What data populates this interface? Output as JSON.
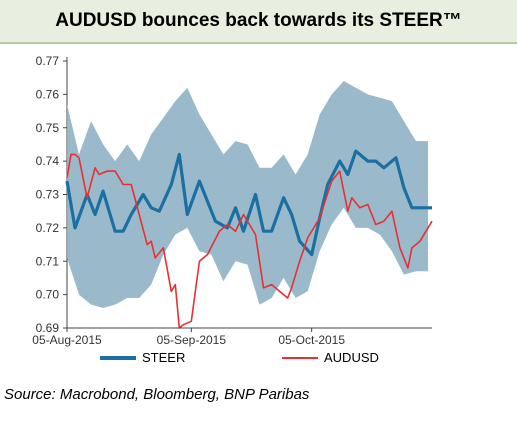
{
  "header": {
    "title": "AUDUSD bounces back towards its STEER™"
  },
  "source": "Source: Macrobond, Bloomberg, BNP Paribas",
  "colors": {
    "steer": "#1a6fa3",
    "audusd": "#e83030",
    "band": "#8fb3c6"
  },
  "chart_data": {
    "type": "line",
    "title": "AUDUSD bounces back towards its STEER™",
    "xlabel": "",
    "ylabel": "",
    "ylim": [
      0.69,
      0.77
    ],
    "yticks": [
      "0.77",
      "0.76",
      "0.75",
      "0.74",
      "0.73",
      "0.72",
      "0.71",
      "0.70",
      "0.69"
    ],
    "ytick_values": [
      0.77,
      0.76,
      0.75,
      0.74,
      0.73,
      0.72,
      0.71,
      0.7,
      0.69
    ],
    "xlim": [
      "2015-08-05",
      "2015-11-04"
    ],
    "xticks": [
      {
        "label": "05-Aug-2015",
        "date": "2015-08-05"
      },
      {
        "label": "05-Sep-2015",
        "date": "2015-09-05"
      },
      {
        "label": "05-Oct-2015",
        "date": "2015-10-05"
      }
    ],
    "legend": {
      "placement": "bottom"
    },
    "band": {
      "x": [
        "2015-08-05",
        "2015-08-08",
        "2015-08-11",
        "2015-08-14",
        "2015-08-17",
        "2015-08-20",
        "2015-08-23",
        "2015-08-26",
        "2015-08-29",
        "2015-09-01",
        "2015-09-04",
        "2015-09-07",
        "2015-09-10",
        "2015-09-13",
        "2015-09-16",
        "2015-09-19",
        "2015-09-22",
        "2015-09-25",
        "2015-09-28",
        "2015-10-01",
        "2015-10-04",
        "2015-10-07",
        "2015-10-10",
        "2015-10-13",
        "2015-10-16",
        "2015-10-19",
        "2015-10-22",
        "2015-10-25",
        "2015-10-28",
        "2015-10-31",
        "2015-11-03"
      ],
      "upper": [
        0.757,
        0.742,
        0.752,
        0.745,
        0.74,
        0.745,
        0.74,
        0.748,
        0.753,
        0.758,
        0.762,
        0.754,
        0.748,
        0.742,
        0.746,
        0.745,
        0.738,
        0.738,
        0.742,
        0.736,
        0.742,
        0.754,
        0.76,
        0.764,
        0.762,
        0.76,
        0.759,
        0.758,
        0.752,
        0.746,
        0.746
      ],
      "lower": [
        0.711,
        0.7,
        0.697,
        0.696,
        0.697,
        0.699,
        0.699,
        0.703,
        0.712,
        0.718,
        0.72,
        0.713,
        0.712,
        0.704,
        0.71,
        0.709,
        0.697,
        0.699,
        0.705,
        0.699,
        0.701,
        0.713,
        0.721,
        0.726,
        0.72,
        0.72,
        0.718,
        0.713,
        0.706,
        0.707,
        0.707
      ]
    },
    "series": [
      {
        "name": "STEER",
        "x": [
          "2015-08-05",
          "2015-08-07",
          "2015-08-10",
          "2015-08-12",
          "2015-08-14",
          "2015-08-17",
          "2015-08-19",
          "2015-08-21",
          "2015-08-24",
          "2015-08-26",
          "2015-08-28",
          "2015-08-31",
          "2015-09-02",
          "2015-09-04",
          "2015-09-07",
          "2015-09-09",
          "2015-09-11",
          "2015-09-14",
          "2015-09-16",
          "2015-09-18",
          "2015-09-21",
          "2015-09-23",
          "2015-09-25",
          "2015-09-28",
          "2015-09-30",
          "2015-10-02",
          "2015-10-05",
          "2015-10-07",
          "2015-10-09",
          "2015-10-12",
          "2015-10-14",
          "2015-10-16",
          "2015-10-19",
          "2015-10-21",
          "2015-10-23",
          "2015-10-26",
          "2015-10-28",
          "2015-10-30",
          "2015-11-02",
          "2015-11-04"
        ],
        "values": [
          0.734,
          0.72,
          0.73,
          0.724,
          0.731,
          0.719,
          0.719,
          0.724,
          0.73,
          0.726,
          0.725,
          0.733,
          0.742,
          0.724,
          0.734,
          0.728,
          0.722,
          0.72,
          0.726,
          0.719,
          0.73,
          0.719,
          0.719,
          0.729,
          0.724,
          0.716,
          0.712,
          0.723,
          0.733,
          0.74,
          0.736,
          0.743,
          0.74,
          0.74,
          0.738,
          0.741,
          0.732,
          0.726,
          0.726,
          0.726
        ]
      },
      {
        "name": "AUDUSD",
        "x": [
          "2015-08-05",
          "2015-08-06",
          "2015-08-07",
          "2015-08-08",
          "2015-08-10",
          "2015-08-12",
          "2015-08-13",
          "2015-08-15",
          "2015-08-17",
          "2015-08-19",
          "2015-08-21",
          "2015-08-23",
          "2015-08-25",
          "2015-08-26",
          "2015-08-27",
          "2015-08-29",
          "2015-08-31",
          "2015-09-01",
          "2015-09-02",
          "2015-09-03",
          "2015-09-05",
          "2015-09-07",
          "2015-09-09",
          "2015-09-12",
          "2015-09-14",
          "2015-09-16",
          "2015-09-18",
          "2015-09-21",
          "2015-09-23",
          "2015-09-25",
          "2015-09-27",
          "2015-09-29",
          "2015-09-30",
          "2015-10-02",
          "2015-10-04",
          "2015-10-07",
          "2015-10-10",
          "2015-10-12",
          "2015-10-14",
          "2015-10-15",
          "2015-10-17",
          "2015-10-19",
          "2015-10-21",
          "2015-10-23",
          "2015-10-25",
          "2015-10-27",
          "2015-10-29",
          "2015-10-30",
          "2015-11-01",
          "2015-11-04"
        ],
        "values": [
          0.735,
          0.742,
          0.742,
          0.741,
          0.729,
          0.738,
          0.736,
          0.737,
          0.737,
          0.733,
          0.733,
          0.724,
          0.715,
          0.716,
          0.711,
          0.714,
          0.701,
          0.703,
          0.69,
          0.691,
          0.692,
          0.71,
          0.712,
          0.719,
          0.721,
          0.719,
          0.724,
          0.718,
          0.702,
          0.703,
          0.701,
          0.699,
          0.702,
          0.71,
          0.717,
          0.723,
          0.734,
          0.737,
          0.725,
          0.729,
          0.726,
          0.727,
          0.721,
          0.722,
          0.725,
          0.714,
          0.708,
          0.714,
          0.716,
          0.722
        ]
      }
    ]
  },
  "legend": {
    "steer_label": "STEER",
    "audusd_label": "AUDUSD"
  }
}
